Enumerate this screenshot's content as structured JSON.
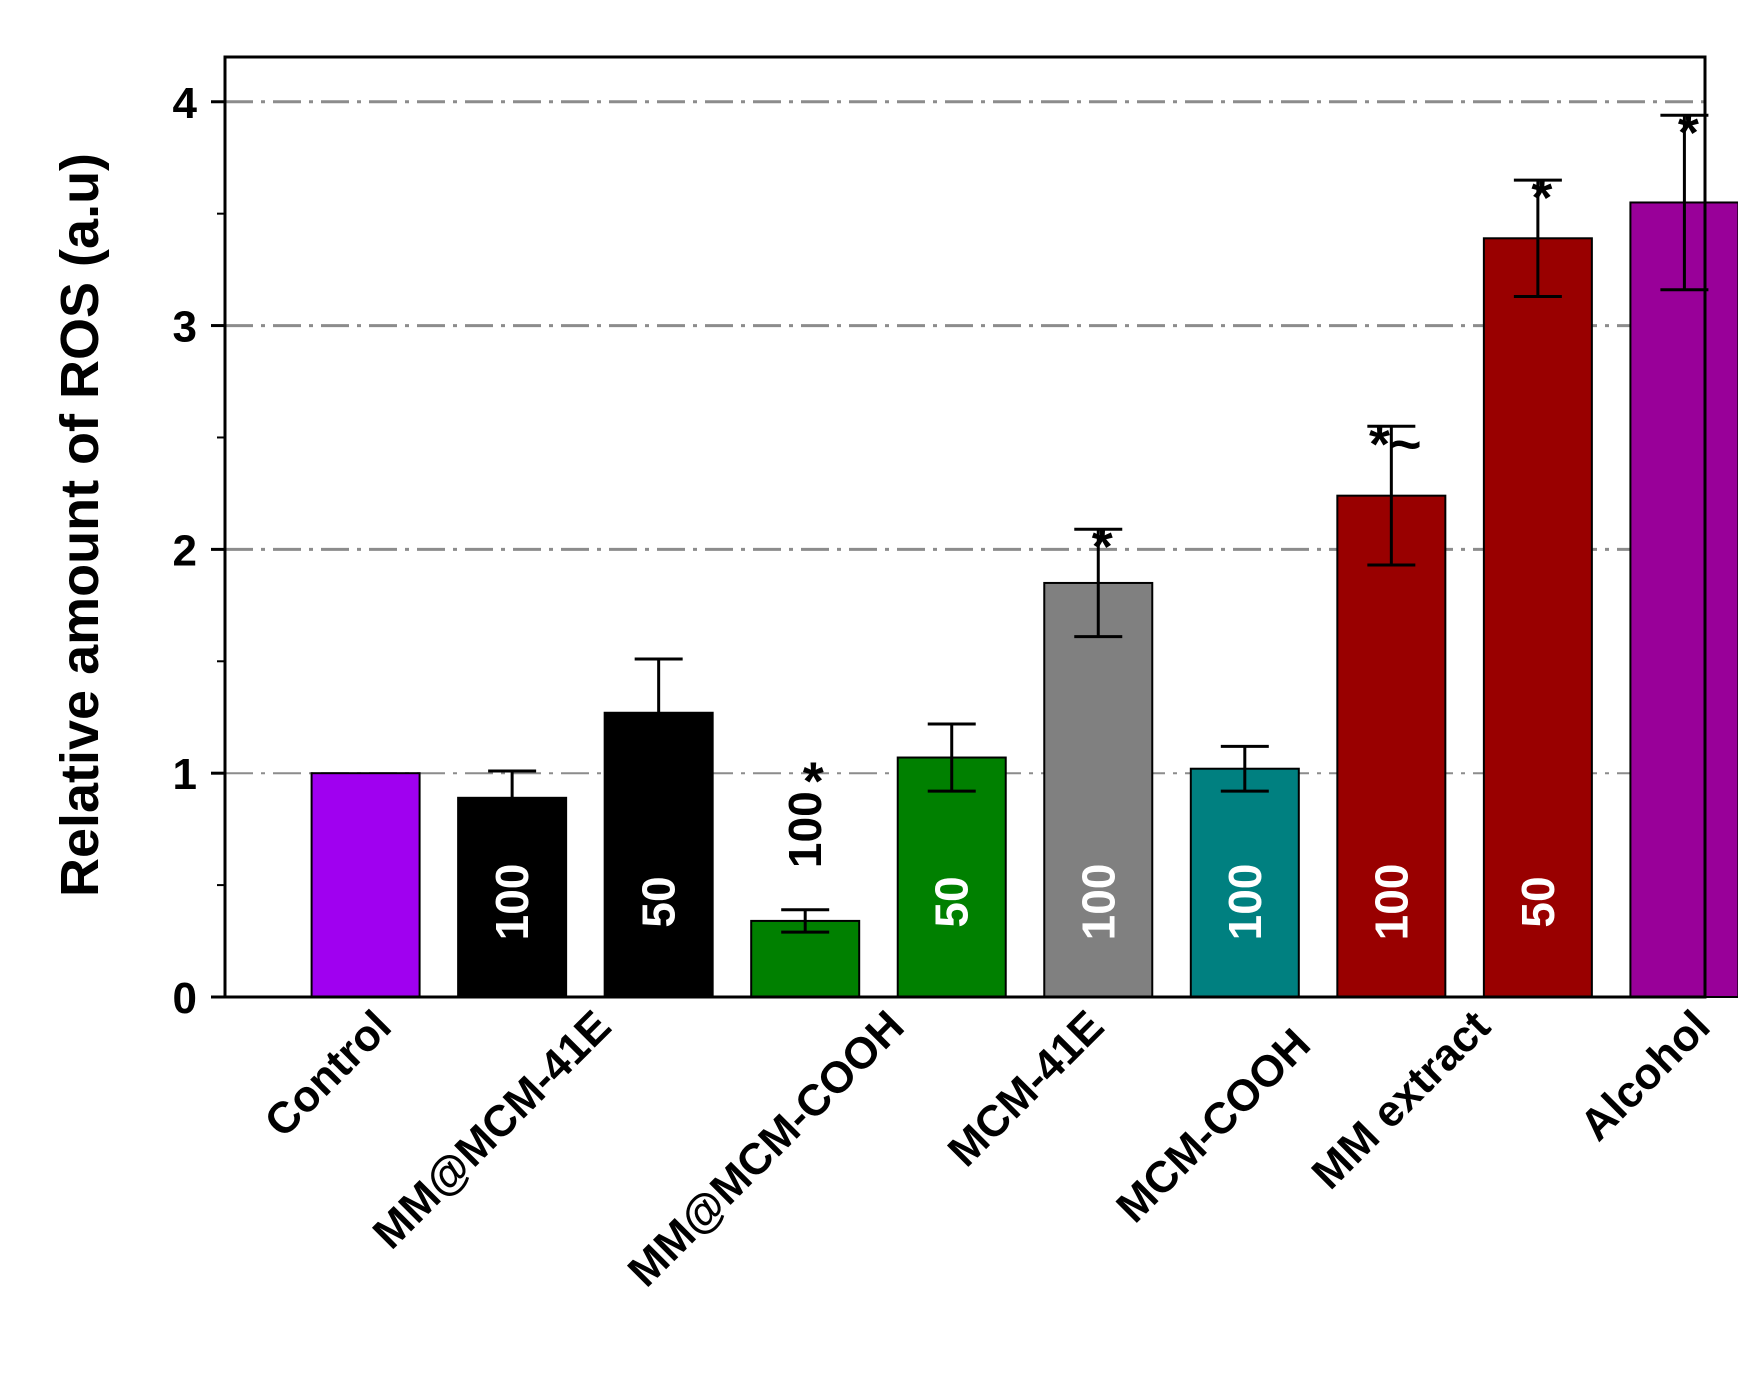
{
  "chart_data": {
    "type": "bar",
    "title": "",
    "xlabel": "",
    "ylabel": "Relative amount of ROS (a.u)",
    "ylim": [
      0,
      4.2
    ],
    "yticks": [
      "0",
      "1",
      "2",
      "3",
      "4"
    ],
    "grid": "horizontal dash-dot lines at 1, 2, 3, 4",
    "bars": [
      {
        "group": "Control",
        "value": 1.0,
        "error": 0,
        "label": "",
        "sig": "",
        "color": "#a000f0",
        "label_color": "#ffffff"
      },
      {
        "group": "MM@MCM-41E",
        "value": 0.89,
        "error": 0.12,
        "label": "100",
        "sig": "",
        "color": "#000000",
        "label_color": "#ffffff"
      },
      {
        "group": "MM@MCM-41E",
        "value": 1.27,
        "error": 0.24,
        "label": "50",
        "sig": "",
        "color": "#000000",
        "label_color": "#ffffff"
      },
      {
        "group": "MM@MCM-COOH",
        "value": 0.34,
        "error": 0.05,
        "label": "100",
        "sig": "*",
        "color": "#008000",
        "label_color": "#000000"
      },
      {
        "group": "MM@MCM-COOH",
        "value": 1.07,
        "error": 0.15,
        "label": "50",
        "sig": "",
        "color": "#008000",
        "label_color": "#ffffff"
      },
      {
        "group": "MCM-41E",
        "value": 1.85,
        "error": 0.24,
        "label": "100",
        "sig": "*",
        "color": "#808080",
        "label_color": "#ffffff"
      },
      {
        "group": "MCM-COOH",
        "value": 1.02,
        "error": 0.1,
        "label": "100",
        "sig": "",
        "color": "#008080",
        "label_color": "#ffffff"
      },
      {
        "group": "MM extract",
        "value": 2.24,
        "error": 0.31,
        "label": "100",
        "sig": "*~",
        "color": "#990000",
        "label_color": "#ffffff"
      },
      {
        "group": "MM extract",
        "value": 3.39,
        "error": 0.26,
        "label": "50",
        "sig": "*",
        "color": "#990000",
        "label_color": "#ffffff"
      },
      {
        "group": "Alcohol",
        "value": 3.55,
        "error": 0.39,
        "label": "",
        "sig": "*",
        "color": "#990099",
        "label_color": "#ffffff"
      }
    ],
    "categories": [
      "Control",
      "MM@MCM-41E",
      "MM@MCM-COOH",
      "MCM-41E",
      "MCM-COOH",
      "MM extract",
      "Alcohol"
    ]
  }
}
